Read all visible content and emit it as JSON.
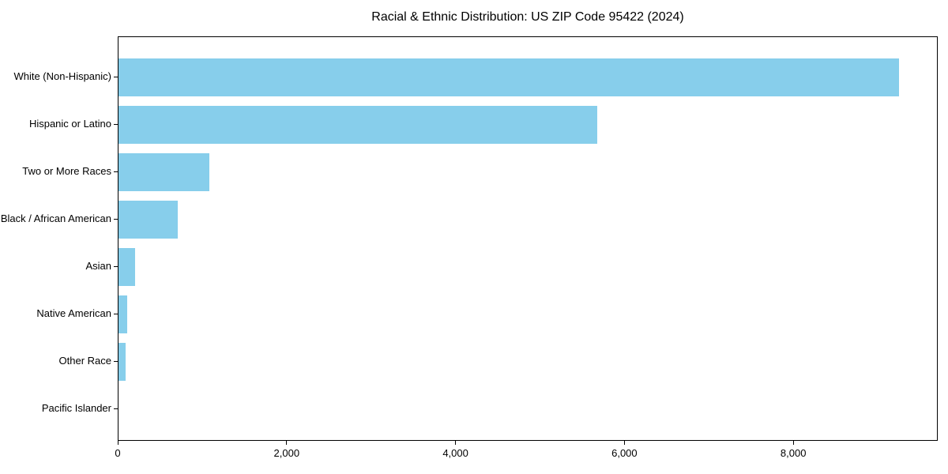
{
  "chart_data": {
    "type": "bar",
    "orientation": "horizontal",
    "title": "Racial & Ethnic Distribution: US ZIP Code 95422 (2024)",
    "categories": [
      "White (Non-Hispanic)",
      "Hispanic or Latino",
      "Two or More Races",
      "Black / African American",
      "Asian",
      "Native American",
      "Other Race",
      "Pacific Islander"
    ],
    "values": [
      9245,
      5670,
      1075,
      700,
      195,
      100,
      85,
      0
    ],
    "xlabel": "",
    "ylabel": "",
    "xlim": [
      0,
      9710
    ],
    "x_ticks": [
      0,
      2000,
      4000,
      6000,
      8000
    ],
    "x_tick_labels": [
      "0",
      "2,000",
      "4,000",
      "6,000",
      "8,000"
    ],
    "bar_color": "#87CEEB",
    "grid": false,
    "legend": null,
    "background_color": "#ffffff",
    "spine_color": "#000000"
  }
}
